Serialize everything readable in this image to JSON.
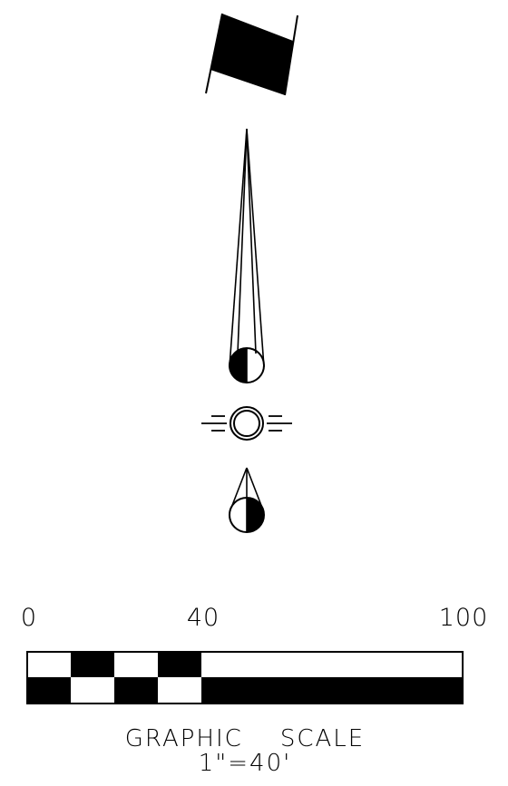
{
  "scale_bar": {
    "labels": [
      "0",
      "40",
      "100"
    ],
    "caption": "GRAPHIC    SCALE",
    "ratio": "1\"=40'"
  },
  "colors": {
    "ink": "#000000",
    "paper": "#ffffff"
  }
}
